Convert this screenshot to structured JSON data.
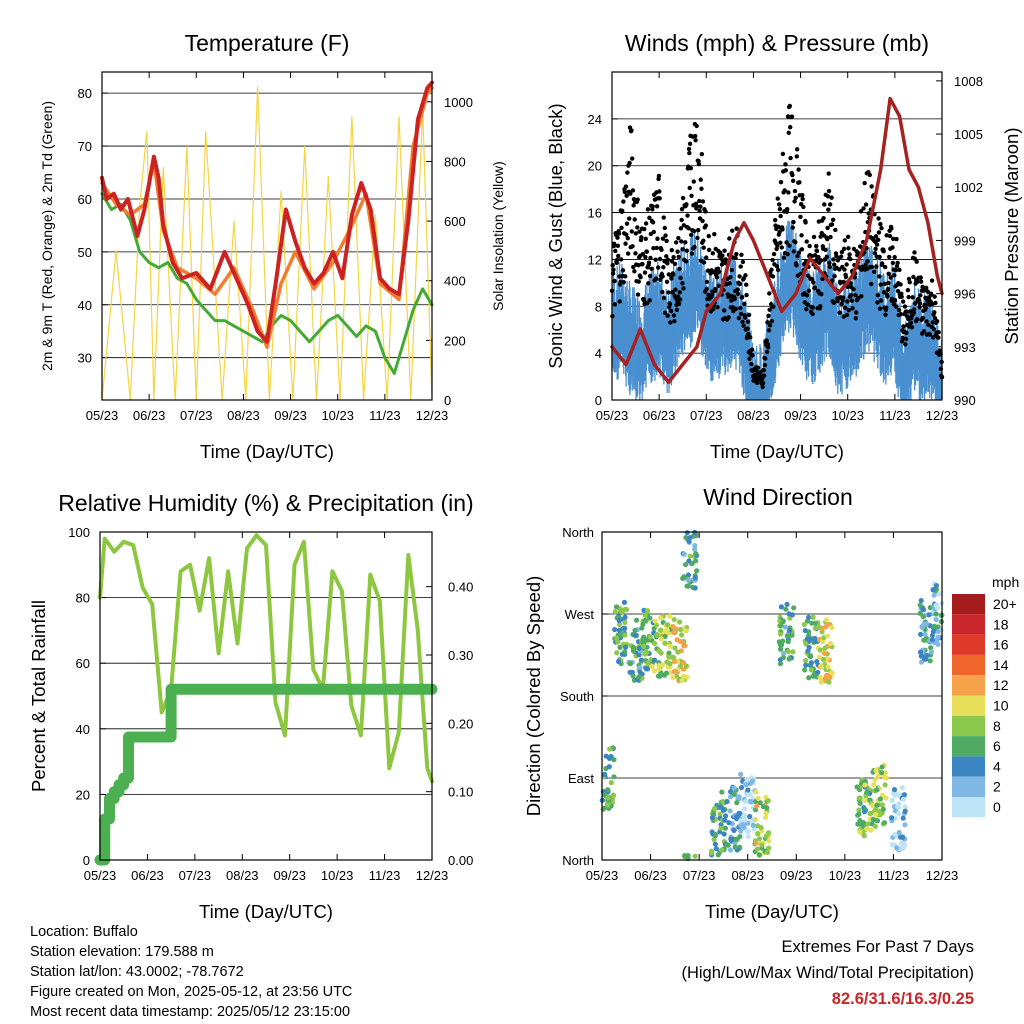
{
  "chart_data": [
    {
      "type": "line",
      "title": "Temperature (F)",
      "xlabel": "Time (Day/UTC)",
      "ylabel": "2m & 9m T (Red, Orange) & 2m Td (Green)",
      "ylabel_right": "Solar Insolation (Yellow)",
      "x_ticks": [
        "05/23",
        "06/23",
        "07/23",
        "08/23",
        "09/23",
        "10/23",
        "11/23",
        "12/23"
      ],
      "ylim": [
        22,
        84
      ],
      "y_ticks": [
        30,
        40,
        50,
        60,
        70,
        80
      ],
      "ylim_right": [
        0,
        1100
      ],
      "y_ticks_right": [
        0,
        200,
        400,
        600,
        800,
        1000
      ],
      "grid": "horizontal",
      "series": [
        {
          "color": "#cc2222",
          "axis": "left",
          "x": [
            0,
            0.1,
            0.25,
            0.4,
            0.55,
            0.75,
            0.9,
            1.1,
            1.2,
            1.3,
            1.5,
            1.7,
            2,
            2.3,
            2.6,
            2.9,
            3.1,
            3.3,
            3.5,
            3.7,
            3.9,
            4.1,
            4.3,
            4.5,
            4.7,
            4.9,
            5.1,
            5.3,
            5.5,
            5.7,
            5.9,
            6.1,
            6.3,
            6.5,
            6.7,
            6.9,
            7
          ],
          "values": [
            64,
            60,
            61,
            58,
            60,
            53,
            58,
            68,
            64,
            55,
            48,
            45,
            46,
            43,
            50,
            44,
            40,
            35,
            33,
            45,
            58,
            52,
            47,
            44,
            46,
            50,
            45,
            57,
            63,
            58,
            45,
            43,
            42,
            56,
            75,
            81,
            82
          ]
        },
        {
          "color": "#f27d30",
          "axis": "left",
          "x": [
            0,
            0.3,
            0.6,
            0.9,
            1.1,
            1.3,
            1.6,
            2,
            2.4,
            2.8,
            3.2,
            3.5,
            3.8,
            4.1,
            4.5,
            4.9,
            5.3,
            5.6,
            5.9,
            6.3,
            6.6,
            6.9,
            7
          ],
          "values": [
            63,
            59,
            57,
            59,
            67,
            54,
            47,
            45,
            42,
            47,
            39,
            32,
            44,
            50,
            43,
            48,
            55,
            61,
            44,
            41,
            70,
            80,
            81
          ]
        },
        {
          "color": "#44aa33",
          "axis": "left",
          "x": [
            0,
            0.2,
            0.4,
            0.6,
            0.8,
            1,
            1.2,
            1.4,
            1.6,
            1.8,
            2,
            2.2,
            2.4,
            2.6,
            2.8,
            3,
            3.2,
            3.4,
            3.6,
            3.8,
            4,
            4.2,
            4.4,
            4.6,
            4.8,
            5,
            5.2,
            5.4,
            5.6,
            5.8,
            6,
            6.2,
            6.4,
            6.6,
            6.8,
            7
          ],
          "values": [
            61,
            58,
            59,
            56,
            50,
            48,
            47,
            48,
            45,
            44,
            41,
            39,
            37,
            37,
            36,
            35,
            34,
            33,
            36,
            38,
            37,
            35,
            33,
            35,
            37,
            38,
            36,
            34,
            36,
            35,
            30,
            27,
            33,
            39,
            43,
            40
          ]
        },
        {
          "color": "#f5d442",
          "axis": "right",
          "x": [
            0,
            0.3,
            0.6,
            0.8,
            0.95,
            1.1,
            1.3,
            1.55,
            1.8,
            2,
            2.2,
            2.55,
            2.8,
            3.05,
            3.3,
            3.55,
            3.8,
            4.05,
            4.3,
            4.55,
            4.8,
            5.05,
            5.3,
            5.55,
            5.8,
            6.05,
            6.3,
            6.55,
            6.8,
            7
          ],
          "values": [
            0,
            500,
            0,
            650,
            900,
            0,
            780,
            0,
            850,
            0,
            900,
            0,
            600,
            0,
            1050,
            0,
            700,
            0,
            850,
            0,
            750,
            0,
            950,
            0,
            620,
            0,
            950,
            0,
            980,
            0
          ]
        }
      ]
    },
    {
      "type": "scatter",
      "title": "Winds (mph) & Pressure (mb)",
      "xlabel": "Time (Day/UTC)",
      "ylabel": "Sonic Wind & Gust (Blue, Black)",
      "ylabel_right": "Station Pressure (Maroon)",
      "x_ticks": [
        "05/23",
        "06/23",
        "07/23",
        "08/23",
        "09/23",
        "10/23",
        "11/23",
        "12/23"
      ],
      "ylim": [
        0,
        28
      ],
      "y_ticks": [
        0,
        4,
        8,
        12,
        16,
        20,
        24
      ],
      "ylim_right": [
        990,
        1008.5
      ],
      "y_ticks_right": [
        990,
        993,
        996,
        999,
        1002,
        1005,
        1008
      ],
      "grid": "horizontal",
      "series": [
        {
          "color": "#000000",
          "axis": "left",
          "x": [
            0,
            0.2,
            0.4,
            0.6,
            0.8,
            1,
            1.2,
            1.4,
            1.6,
            1.8,
            2,
            2.2,
            2.4,
            2.6,
            2.8,
            3,
            3.2,
            3.4,
            3.6,
            3.8,
            4,
            4.2,
            4.4,
            4.6,
            4.8,
            5,
            5.2,
            5.4,
            5.6,
            5.8,
            6,
            6.2,
            6.4,
            6.6,
            6.8,
            7
          ],
          "values": [
            12,
            16,
            22,
            14,
            15,
            18,
            11,
            13,
            19,
            25,
            14,
            13,
            12,
            14,
            11,
            3,
            2,
            12,
            19,
            24,
            17,
            12,
            14,
            18,
            11,
            13,
            12,
            19,
            15,
            13,
            14,
            7,
            12,
            9,
            10,
            3
          ]
        },
        {
          "color": "#4a90d0",
          "axis": "left",
          "x": [
            0,
            0.2,
            0.4,
            0.6,
            0.8,
            1,
            1.2,
            1.4,
            1.6,
            1.8,
            2,
            2.2,
            2.4,
            2.6,
            2.8,
            3,
            3.2,
            3.4,
            3.6,
            3.8,
            4,
            4.2,
            4.4,
            4.6,
            4.8,
            5,
            5.2,
            5.4,
            5.6,
            5.8,
            6,
            6.2,
            6.4,
            6.6,
            6.8,
            7
          ],
          "values": [
            7,
            8,
            6,
            5,
            7,
            8,
            6,
            9,
            10,
            11,
            8,
            7,
            8,
            9,
            6,
            1,
            1,
            6,
            10,
            12,
            9,
            7,
            8,
            10,
            6,
            7,
            8,
            10,
            9,
            7,
            8,
            2,
            7,
            5,
            6,
            1
          ]
        },
        {
          "color": "#a52222",
          "axis": "right",
          "x": [
            0,
            0.3,
            0.6,
            0.9,
            1.2,
            1.5,
            1.8,
            2,
            2.3,
            2.6,
            2.8,
            3,
            3.3,
            3.6,
            3.9,
            4.2,
            4.5,
            4.8,
            5.1,
            5.4,
            5.7,
            5.9,
            6.1,
            6.3,
            6.5,
            6.7,
            6.9,
            7
          ],
          "values": [
            993,
            992,
            994,
            992,
            991,
            992,
            993,
            995,
            996,
            999,
            1000,
            999,
            997,
            995,
            996,
            998,
            997,
            996,
            997,
            999,
            1003,
            1007,
            1006,
            1003,
            1002,
            1000,
            997,
            996
          ]
        }
      ]
    },
    {
      "type": "line",
      "title": "Relative Humidity (%) & Precipitation (in)",
      "xlabel": "Time (Day/UTC)",
      "ylabel": "Percent & Total Rainfall",
      "x_ticks": [
        "05/23",
        "06/23",
        "07/23",
        "08/23",
        "09/23",
        "10/23",
        "11/23",
        "12/23"
      ],
      "ylim": [
        0,
        100
      ],
      "y_ticks": [
        0,
        20,
        40,
        60,
        80,
        100
      ],
      "ylim_right": [
        0,
        0.48
      ],
      "y_ticks_right": [
        "0.00",
        "0.10",
        "0.20",
        "0.30",
        "0.40"
      ],
      "grid": "horizontal",
      "series": [
        {
          "color": "#8dc63f",
          "axis": "left",
          "x": [
            0,
            0.1,
            0.3,
            0.5,
            0.7,
            0.9,
            1.1,
            1.3,
            1.5,
            1.7,
            1.9,
            2.1,
            2.3,
            2.5,
            2.7,
            2.9,
            3.1,
            3.3,
            3.5,
            3.7,
            3.9,
            4.1,
            4.3,
            4.5,
            4.7,
            4.9,
            5.1,
            5.3,
            5.5,
            5.7,
            5.9,
            6.1,
            6.3,
            6.5,
            6.7,
            6.9,
            7
          ],
          "values": [
            80,
            98,
            94,
            97,
            96,
            83,
            78,
            45,
            52,
            88,
            90,
            76,
            92,
            63,
            88,
            66,
            95,
            99,
            96,
            48,
            38,
            90,
            97,
            58,
            52,
            88,
            82,
            47,
            38,
            87,
            79,
            28,
            39,
            93,
            70,
            28,
            24
          ]
        },
        {
          "color": "#4caf50",
          "axis": "right",
          "x": [
            0,
            0.1,
            0.2,
            0.3,
            0.4,
            0.5,
            0.6,
            0.8,
            1,
            1.2,
            1.4,
            1.5,
            1.6,
            2,
            3,
            4,
            5,
            6,
            7
          ],
          "values": [
            0,
            0.06,
            0.09,
            0.1,
            0.11,
            0.12,
            0.18,
            0.18,
            0.18,
            0.18,
            0.18,
            0.25,
            0.25,
            0.25,
            0.25,
            0.25,
            0.25,
            0.25,
            0.25
          ]
        }
      ]
    },
    {
      "type": "scatter",
      "title": "Wind Direction",
      "xlabel": "Time (Day/UTC)",
      "ylabel": "Direction (Colored By Speed)",
      "x_ticks": [
        "05/23",
        "06/23",
        "07/23",
        "08/23",
        "09/23",
        "10/23",
        "11/23",
        "12/23"
      ],
      "y_categories": [
        "North",
        "East",
        "South",
        "West",
        "North"
      ],
      "legend_title": "mph",
      "legend": [
        {
          "label": "20+",
          "color": "#a51c1c"
        },
        {
          "label": "18",
          "color": "#c8262b"
        },
        {
          "label": "16",
          "color": "#e03b2a"
        },
        {
          "label": "14",
          "color": "#f0652a"
        },
        {
          "label": "12",
          "color": "#f6a24a"
        },
        {
          "label": "10",
          "color": "#e8e05a"
        },
        {
          "label": "8",
          "color": "#8cc84b"
        },
        {
          "label": "6",
          "color": "#4faa63"
        },
        {
          "label": "4",
          "color": "#3a85c2"
        },
        {
          "label": "2",
          "color": "#7fb8e4"
        },
        {
          "label": "0",
          "color": "#bfe3f6"
        }
      ],
      "legend_placement": "right",
      "clusters": [
        {
          "x": 0.1,
          "dir": 90,
          "speed": 6
        },
        {
          "x": 0.4,
          "dir": 250,
          "speed": 6
        },
        {
          "x": 0.7,
          "dir": 230,
          "speed": 5
        },
        {
          "x": 1.0,
          "dir": 240,
          "speed": 7
        },
        {
          "x": 1.3,
          "dir": 235,
          "speed": 8
        },
        {
          "x": 1.6,
          "dir": 230,
          "speed": 10
        },
        {
          "x": 1.8,
          "dir": 330,
          "speed": 5
        },
        {
          "x": 2.4,
          "dir": 40,
          "speed": 6
        },
        {
          "x": 2.7,
          "dir": 45,
          "speed": 4
        },
        {
          "x": 3.0,
          "dir": 60,
          "speed": 1
        },
        {
          "x": 3.3,
          "dir": 40,
          "speed": 9
        },
        {
          "x": 3.8,
          "dir": 250,
          "speed": 5
        },
        {
          "x": 4.3,
          "dir": 235,
          "speed": 6
        },
        {
          "x": 4.6,
          "dir": 230,
          "speed": 10
        },
        {
          "x": 5.4,
          "dir": 60,
          "speed": 7
        },
        {
          "x": 5.7,
          "dir": 70,
          "speed": 8
        },
        {
          "x": 6.1,
          "dir": 45,
          "speed": 1
        },
        {
          "x": 6.7,
          "dir": 250,
          "speed": 4
        },
        {
          "x": 6.95,
          "dir": 270,
          "speed": 3
        }
      ]
    }
  ],
  "footer": {
    "location": "Location: Buffalo",
    "elevation": "Station elevation: 179.588 m",
    "latlon": "Station lat/lon: 43.0002; -78.7672",
    "created": "Figure created on Mon, 2025-05-12, at 23:56 UTC",
    "recent": "Most recent data timestamp: 2025/05/12 23:15:00"
  },
  "extremes": {
    "title": "Extremes For Past 7 Days",
    "subtitle": "(High/Low/Max Wind/Total Precipitation)",
    "values": "82.6/31.6/16.3/0.25"
  }
}
